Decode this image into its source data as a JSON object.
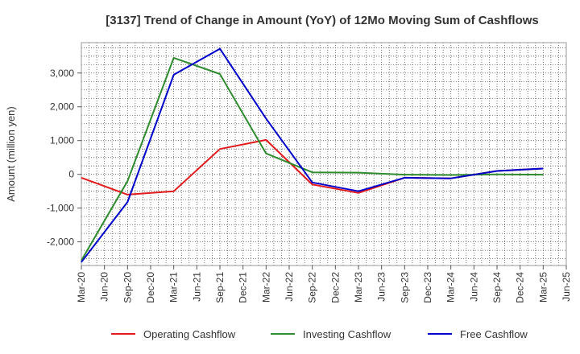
{
  "chart_data": {
    "type": "line",
    "title": "[3137]  Trend of Change in Amount (YoY) of 12Mo Moving Sum of Cashflows",
    "xlabel": "",
    "ylabel": "Amount (million yen)",
    "ylim": [
      -2700,
      3900
    ],
    "yticks": [
      -2000,
      -1000,
      0,
      1000,
      2000,
      3000
    ],
    "ytick_labels": [
      "-2,000",
      "-1,000",
      "0",
      "1,000",
      "2,000",
      "3,000"
    ],
    "x_labels": [
      "Mar-20",
      "Jun-20",
      "Sep-20",
      "Dec-20",
      "Mar-21",
      "Jun-21",
      "Sep-21",
      "Dec-21",
      "Mar-22",
      "Jun-22",
      "Sep-22",
      "Dec-22",
      "Mar-23",
      "Jun-23",
      "Sep-23",
      "Dec-23",
      "Mar-24",
      "Jun-24",
      "Sep-24",
      "Dec-24",
      "Mar-25",
      "Jun-25"
    ],
    "grid": true,
    "legend_position": "bottom",
    "series": [
      {
        "name": "Operating Cashflow",
        "color": "#e31a1c",
        "x_index": [
          0,
          2,
          4,
          6,
          8,
          10,
          12,
          14,
          16,
          18,
          20
        ],
        "values": [
          -100,
          -600,
          -500,
          750,
          1020,
          -300,
          -550,
          -100,
          -120,
          100,
          170
        ]
      },
      {
        "name": "Investing Cashflow",
        "color": "#2e8b2e",
        "x_index": [
          0,
          2,
          4,
          6,
          8,
          10,
          12,
          14,
          16,
          18,
          20
        ],
        "values": [
          -2550,
          -200,
          3450,
          2970,
          620,
          60,
          50,
          -10,
          -20,
          0,
          -10
        ]
      },
      {
        "name": "Free Cashflow",
        "color": "#0000cc",
        "x_index": [
          0,
          2,
          4,
          6,
          8,
          10,
          12,
          14,
          16,
          18,
          20
        ],
        "values": [
          -2600,
          -820,
          2950,
          3720,
          1650,
          -240,
          -500,
          -100,
          -120,
          100,
          170
        ]
      }
    ]
  }
}
